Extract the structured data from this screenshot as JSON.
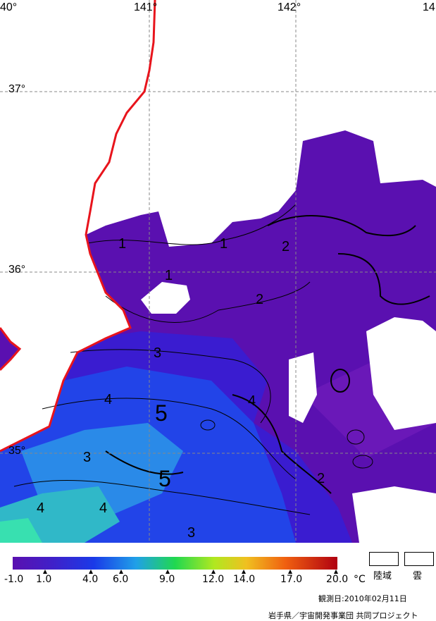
{
  "map": {
    "lon_labels": [
      "40°",
      "141°",
      "142°",
      "14"
    ],
    "lat_labels": [
      "37°",
      "36°",
      "35°"
    ],
    "contour_labels": [
      "1",
      "1",
      "1",
      "2",
      "2",
      "2",
      "3",
      "3",
      "3",
      "4",
      "4",
      "4",
      "4",
      "5",
      "5"
    ]
  },
  "colorbar": {
    "ticks": [
      "-1.0",
      "1.0",
      "4.0",
      "6.0",
      "9.0",
      "12.0",
      "14.0",
      "17.0",
      "20.0"
    ],
    "unit": "°C"
  },
  "legend": {
    "land": "陸域",
    "cloud": "雲"
  },
  "footer": {
    "date": "観測日:2010年02月11日",
    "credit": "岩手県／宇宙開発事業団 共同プロジェクト"
  },
  "colors": {
    "coastline": "#e8141c",
    "sst_cold": "#5a10b0",
    "sst_mid": "#1a3ae0",
    "sst_warm": "#28c8c0"
  }
}
